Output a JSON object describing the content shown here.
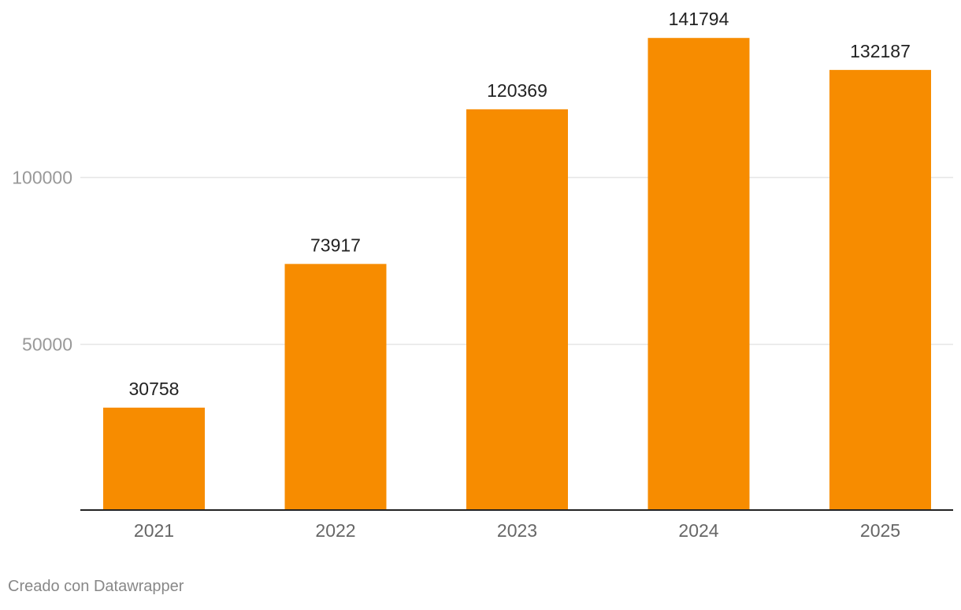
{
  "chart_data": {
    "type": "bar",
    "categories": [
      "2021",
      "2022",
      "2023",
      "2024",
      "2025"
    ],
    "values": [
      30758,
      73917,
      120369,
      141794,
      132187
    ],
    "data_labels": [
      "30758",
      "73917",
      "120369",
      "141794",
      "132187"
    ],
    "yticks": [
      50000,
      100000
    ],
    "ytick_labels": [
      "50000",
      "100000"
    ],
    "ylim": [
      0,
      150000
    ],
    "grid": true,
    "bar_color": "#F78C00",
    "title": "",
    "xlabel": "",
    "ylabel": ""
  },
  "footer": {
    "credit": "Creado con Datawrapper"
  },
  "colors": {
    "bar": "#F78C00",
    "gridline": "#E6E6E6",
    "axis": "#222222",
    "tick_label": "#999999",
    "category_label": "#666666",
    "data_label": "#222222"
  }
}
